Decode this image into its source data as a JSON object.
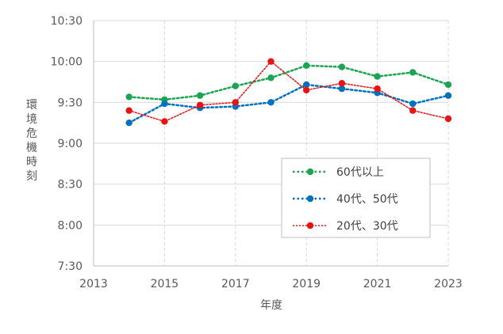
{
  "chart_data": {
    "type": "line",
    "title": "",
    "xlabel": "年度",
    "ylabel": "環境危機時刻",
    "xlim": [
      2013,
      2023
    ],
    "x_ticks": [
      2013,
      2015,
      2017,
      2019,
      2021,
      2023
    ],
    "x_tick_labels": [
      "2013",
      "2015",
      "2017",
      "2019",
      "2021",
      "2023"
    ],
    "ylim_minutes": [
      450,
      630
    ],
    "y_ticks_minutes": [
      450,
      480,
      510,
      540,
      570,
      600,
      630
    ],
    "y_tick_labels": [
      "7:30",
      "8:00",
      "8:30",
      "9:00",
      "9:30",
      "10:00",
      "10:30"
    ],
    "grid": true,
    "legend_position": "bottom-right",
    "x": [
      2014,
      2015,
      2016,
      2017,
      2018,
      2019,
      2020,
      2021,
      2022,
      2023
    ],
    "series": [
      {
        "name": "60代以上",
        "color": "#1aa651",
        "values": [
          574,
          572,
          575,
          582,
          588,
          597,
          596,
          589,
          592,
          583
        ]
      },
      {
        "name": "40代、50代",
        "color": "#0070c0",
        "values": [
          555,
          569,
          566,
          567,
          570,
          583,
          580,
          577,
          569,
          575
        ]
      },
      {
        "name": "20代、30代",
        "color": "#ee1111",
        "values": [
          564,
          556,
          568,
          570,
          600,
          579,
          584,
          580,
          564,
          558
        ]
      }
    ]
  }
}
